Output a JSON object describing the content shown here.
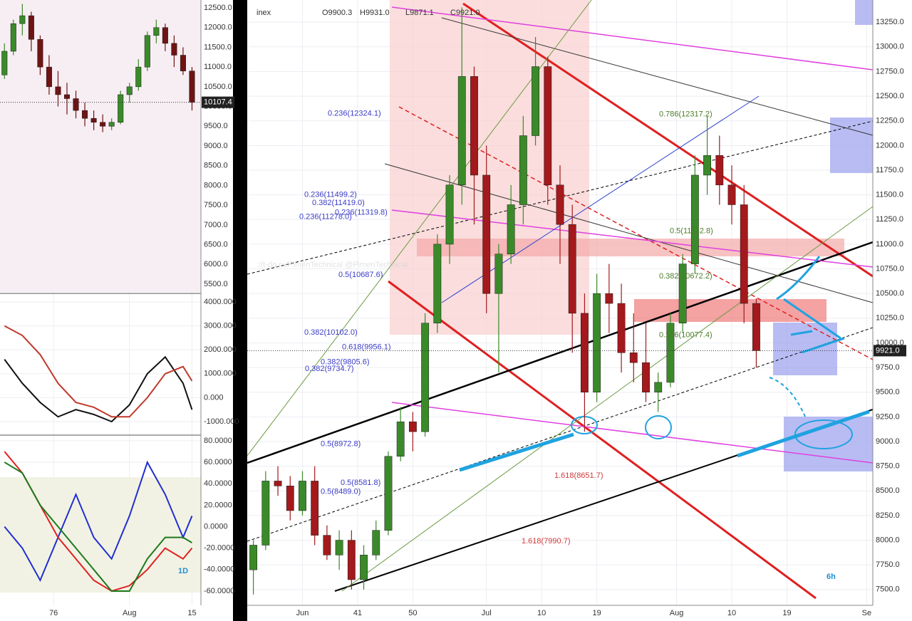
{
  "chart_data": [
    {
      "type": "candlestick",
      "title": "inex",
      "ohlc_header": [
        "O9900.3",
        "H9931.0",
        "L9871.1",
        "C9921.0"
      ],
      "timeframe": "6h",
      "watermark": "://t-do.ru/PimenTechnical  @PimenTechnical",
      "up_color": "#3b8a2a",
      "down_color": "#a3191c",
      "grid": true,
      "xlim": [
        23,
        125
      ],
      "ylim": [
        7340,
        13475
      ],
      "xticks": [
        {
          "value": 32,
          "label": "Jun"
        },
        41,
        50,
        {
          "value": 62,
          "label": "Jul"
        },
        {
          "value": 71,
          "label": "10"
        },
        {
          "value": 80,
          "label": "19"
        },
        {
          "value": 93,
          "label": "Aug"
        },
        {
          "value": 102,
          "label": "10"
        },
        {
          "value": 111,
          "label": "19"
        },
        {
          "value": 124,
          "label": "Se"
        }
      ],
      "yticks": [
        {
          "value": 7500,
          "label": "7500.0"
        },
        {
          "value": 7750,
          "label": "7750.0"
        },
        {
          "value": 8000,
          "label": "8000.0"
        },
        {
          "value": 8250,
          "label": "8250.0"
        },
        {
          "value": 8500,
          "label": "8500.0"
        },
        {
          "value": 8750,
          "label": "8750.0"
        },
        {
          "value": 9000,
          "label": "9000.0"
        },
        {
          "value": 9250,
          "label": "9250.0"
        },
        {
          "value": 9500,
          "label": "9500.0"
        },
        {
          "value": 9750,
          "label": "9750.0"
        },
        {
          "value": 10000,
          "label": "10000.0"
        },
        {
          "value": 10250,
          "label": "10250.0"
        },
        {
          "value": 10500,
          "label": "10500.0"
        },
        {
          "value": 10750,
          "label": "10750.0"
        },
        {
          "value": 11000,
          "label": "11000.0"
        },
        {
          "value": 11250,
          "label": "11250.0"
        },
        {
          "value": 11500,
          "label": "11500.0"
        },
        {
          "value": 11750,
          "label": "11750.0"
        },
        {
          "value": 12000,
          "label": "12000.0"
        },
        {
          "value": 12250,
          "label": "12250.0"
        },
        {
          "value": 12500,
          "label": "12500.0"
        },
        {
          "value": 12750,
          "label": "12750.0"
        },
        {
          "value": 13000,
          "label": "13000.0"
        },
        {
          "value": 13250,
          "label": "13250.0"
        }
      ],
      "x": [
        24,
        26,
        28,
        30,
        32,
        34,
        36,
        38,
        40,
        42,
        44,
        46,
        48,
        50,
        52,
        54,
        56,
        58,
        60,
        62,
        64,
        66,
        68,
        70,
        72,
        74,
        76,
        78,
        80,
        82,
        84,
        86,
        88,
        90,
        92,
        94,
        96,
        98,
        100,
        102,
        104,
        106
      ],
      "ohlc": [
        [
          7700,
          8000,
          7450,
          7950
        ],
        [
          7950,
          8700,
          7900,
          8600
        ],
        [
          8600,
          8750,
          8450,
          8550
        ],
        [
          8550,
          8650,
          8200,
          8300
        ],
        [
          8300,
          8700,
          8250,
          8600
        ],
        [
          8600,
          8750,
          7950,
          8050
        ],
        [
          8050,
          8150,
          7800,
          7850
        ],
        [
          7850,
          8100,
          7700,
          8000
        ],
        [
          8000,
          8100,
          7500,
          7600
        ],
        [
          7600,
          7950,
          7500,
          7850
        ],
        [
          7850,
          8200,
          7800,
          8100
        ],
        [
          8100,
          8900,
          8050,
          8850
        ],
        [
          8850,
          9350,
          8800,
          9200
        ],
        [
          9200,
          9300,
          8900,
          9100
        ],
        [
          9100,
          10300,
          9050,
          10200
        ],
        [
          10200,
          11100,
          10100,
          11000
        ],
        [
          11000,
          11700,
          10800,
          11600
        ],
        [
          11600,
          13400,
          11400,
          12700
        ],
        [
          12700,
          12800,
          11200,
          11700
        ],
        [
          11700,
          12000,
          10300,
          10500
        ],
        [
          10500,
          11000,
          9700,
          10900
        ],
        [
          10900,
          11600,
          10800,
          11400
        ],
        [
          11400,
          12300,
          11200,
          12100
        ],
        [
          12100,
          13100,
          12000,
          12800
        ],
        [
          12800,
          12900,
          11400,
          11600
        ],
        [
          11600,
          11800,
          10800,
          11200
        ],
        [
          11200,
          11400,
          9900,
          10300
        ],
        [
          10300,
          10500,
          9100,
          9500
        ],
        [
          9500,
          10700,
          9400,
          10500
        ],
        [
          10500,
          10800,
          10100,
          10400
        ],
        [
          10400,
          10600,
          9700,
          9900
        ],
        [
          9900,
          10300,
          9600,
          9800
        ],
        [
          9800,
          10200,
          9400,
          9500
        ],
        [
          9500,
          9700,
          9300,
          9600
        ],
        [
          9600,
          10300,
          9550,
          10200
        ],
        [
          10200,
          10900,
          10100,
          10800
        ],
        [
          10800,
          11900,
          10700,
          11700
        ],
        [
          11700,
          12300,
          11500,
          11900
        ],
        [
          11900,
          12100,
          11400,
          11600
        ],
        [
          11600,
          11800,
          11200,
          11400
        ],
        [
          11400,
          11600,
          10200,
          10400
        ],
        [
          10400,
          10450,
          9750,
          9921
        ]
      ],
      "last_price": 9921.0,
      "last_price_label": "9921.0",
      "annotations": [
        {
          "text": "0.236(12324.1)",
          "value": 12324.1,
          "color": "#3c3cc8"
        },
        {
          "text": "0.236(11499.2)",
          "value": 11499.2,
          "color": "#3c3cc8"
        },
        {
          "text": "0.382(11419.0)",
          "value": 11419.0,
          "color": "#3c3cc8"
        },
        {
          "text": "0.236(11319.8)",
          "value": 11319.8,
          "color": "#3c3cc8"
        },
        {
          "text": "0.236(11278.0)",
          "value": 11278.0,
          "color": "#3c3cc8"
        },
        {
          "text": "0.5(10687.6)",
          "value": 10687.6,
          "color": "#3c3cc8"
        },
        {
          "text": "0.382(10102.0)",
          "value": 10102.0,
          "color": "#3c3cc8"
        },
        {
          "text": "0.618(9956.1)",
          "value": 9956.1,
          "color": "#3c3cc8"
        },
        {
          "text": "0.382(9805.6)",
          "value": 9805.6,
          "color": "#3c3cc8"
        },
        {
          "text": "0.382(9734.7)",
          "value": 9734.7,
          "color": "#3c3cc8"
        },
        {
          "text": "0.5(8972.8)",
          "value": 8972.8,
          "color": "#3c3cc8"
        },
        {
          "text": "0.5(8581.8)",
          "value": 8581.8,
          "color": "#3c3cc8"
        },
        {
          "text": "0.5(8489.0)",
          "value": 8489.0,
          "color": "#3c3cc8"
        },
        {
          "text": "0.786(12317.2)",
          "value": 12317.2,
          "color": "#4d7d2a"
        },
        {
          "text": "0.5(11132.8)",
          "value": 11132.8,
          "color": "#4d7d2a"
        },
        {
          "text": "0.382(10672.2)",
          "value": 10672.2,
          "color": "#4d7d2a"
        },
        {
          "text": "0.236(10077.4)",
          "value": 10077.4,
          "color": "#4d7d2a"
        },
        {
          "text": "1.618(8651.7)",
          "value": 8651.7,
          "color": "#d23a3a"
        },
        {
          "text": "1.618(7990.7)",
          "value": 7990.7,
          "color": "#d23a3a"
        }
      ]
    },
    {
      "type": "candlestick",
      "up_color": "#3b8a2a",
      "down_color": "#6e1414",
      "grid": true,
      "xlim": [
        64,
        109
      ],
      "ylim": [
        5302,
        12698
      ],
      "yticks": [
        {
          "value": 5500,
          "label": "5500.0"
        },
        {
          "value": 6000,
          "label": "6000.0"
        },
        {
          "value": 6500,
          "label": "6500.0"
        },
        {
          "value": 7000,
          "label": "7000.0"
        },
        {
          "value": 7500,
          "label": "7500.0"
        },
        {
          "value": 8000,
          "label": "8000.0"
        },
        {
          "value": 8500,
          "label": "8500.0"
        },
        {
          "value": 9000,
          "label": "9000.0"
        },
        {
          "value": 9500,
          "label": "9500.0"
        },
        {
          "value": 10000,
          "label": "10000.0"
        },
        {
          "value": 10500,
          "label": "10500.0"
        },
        {
          "value": 11000,
          "label": "11000.0"
        },
        {
          "value": 11500,
          "label": "11500.0"
        },
        {
          "value": 12000,
          "label": "12000.0"
        },
        {
          "value": 12500,
          "label": "12500.0"
        }
      ],
      "x": [
        65,
        67,
        69,
        71,
        73,
        75,
        77,
        79,
        81,
        83,
        85,
        87,
        89,
        91,
        93,
        95,
        97,
        99,
        101,
        103,
        105,
        107
      ],
      "ohlc": [
        [
          10800,
          11600,
          10700,
          11400
        ],
        [
          11400,
          12200,
          11300,
          12100
        ],
        [
          12100,
          12600,
          11800,
          12300
        ],
        [
          12300,
          12400,
          11400,
          11700
        ],
        [
          11700,
          11800,
          10800,
          11000
        ],
        [
          11000,
          11300,
          10300,
          10500
        ],
        [
          10500,
          10900,
          10000,
          10300
        ],
        [
          10300,
          10600,
          9800,
          10200
        ],
        [
          10200,
          10400,
          9700,
          9900
        ],
        [
          9900,
          10100,
          9500,
          9700
        ],
        [
          9700,
          9900,
          9400,
          9600
        ],
        [
          9600,
          9800,
          9350,
          9500
        ],
        [
          9500,
          9700,
          9400,
          9600
        ],
        [
          9600,
          10400,
          9550,
          10300
        ],
        [
          10300,
          10600,
          10100,
          10500
        ],
        [
          10500,
          11200,
          10400,
          11000
        ],
        [
          11000,
          11900,
          10900,
          11800
        ],
        [
          11800,
          12200,
          11600,
          12000
        ],
        [
          12000,
          12100,
          11400,
          11600
        ],
        [
          11600,
          11800,
          11000,
          11300
        ],
        [
          11300,
          11500,
          10800,
          10900
        ],
        [
          10900,
          11000,
          9900,
          10107.4
        ]
      ],
      "last_price": 10107.4,
      "last_price_label": "10107.4"
    },
    {
      "type": "line",
      "grid": true,
      "xlim": [
        64,
        109
      ],
      "ylim": [
        -1536,
        4268
      ],
      "yticks": [
        {
          "value": -1000,
          "label": "-1000.000"
        },
        {
          "value": 0,
          "label": "0.000"
        },
        {
          "value": 1000,
          "label": "1000.000"
        },
        {
          "value": 2000,
          "label": "2000.000"
        },
        {
          "value": 3000,
          "label": "3000.000"
        },
        {
          "value": 4000,
          "label": "4000.000"
        }
      ],
      "x": [
        65,
        69,
        73,
        77,
        81,
        85,
        89,
        93,
        97,
        101,
        105,
        107
      ],
      "series": [
        {
          "color": "#111111",
          "values": [
            1600,
            600,
            -200,
            -800,
            -500,
            -700,
            -1000,
            -300,
            1000,
            1700,
            600,
            -500
          ]
        },
        {
          "color": "#c0392b",
          "values": [
            3000,
            2600,
            1800,
            600,
            -200,
            -400,
            -800,
            -800,
            0,
            1000,
            1300,
            700
          ]
        }
      ]
    },
    {
      "type": "line",
      "grid": true,
      "timeframe": "1D",
      "xlim": [
        64,
        109
      ],
      "ylim": [
        -73.3,
        84.6
      ],
      "xticks": [
        76,
        {
          "value": 93,
          "label": "Aug"
        },
        {
          "value": 107,
          "label": "15"
        }
      ],
      "yticks": [
        {
          "value": -60,
          "label": "-60.0000"
        },
        {
          "value": -40,
          "label": "-40.0000"
        },
        {
          "value": -20,
          "label": "-20.0000"
        },
        {
          "value": 0,
          "label": "0.0000"
        },
        {
          "value": 20,
          "label": "20.0000"
        },
        {
          "value": 40,
          "label": "40.0000"
        },
        {
          "value": 60,
          "label": "60.0000"
        },
        {
          "value": 80,
          "label": "80.0000"
        }
      ],
      "x": [
        65,
        69,
        73,
        77,
        81,
        85,
        89,
        93,
        97,
        101,
        105,
        107
      ],
      "series": [
        {
          "color": "#1f2fd0",
          "values": [
            0,
            -20,
            -50,
            -10,
            30,
            -10,
            -30,
            10,
            60,
            30,
            -10,
            10
          ]
        },
        {
          "color": "#e02020",
          "values": [
            70,
            50,
            20,
            -10,
            -30,
            -50,
            -60,
            -55,
            -40,
            -20,
            -30,
            -20
          ]
        },
        {
          "color": "#1e7a1e",
          "values": [
            60,
            50,
            20,
            0,
            -20,
            -40,
            -60,
            -60,
            -30,
            -10,
            -10,
            -15
          ]
        }
      ]
    }
  ]
}
